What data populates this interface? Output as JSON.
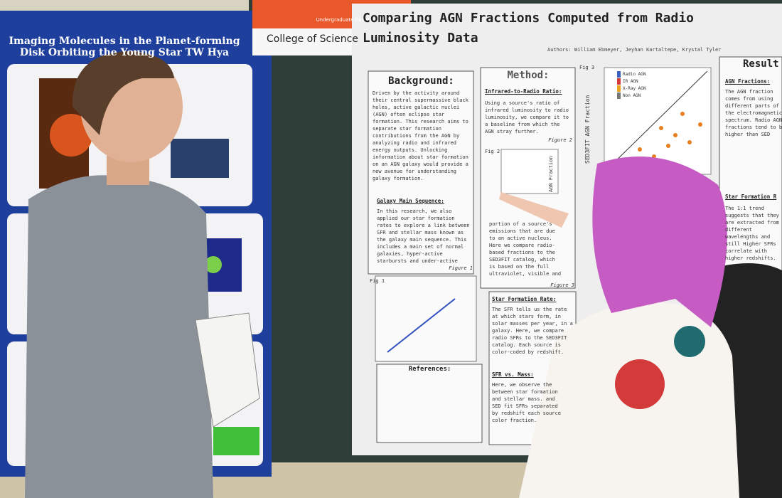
{
  "left_poster": {
    "title": "Imaging Molecules in the Planet-forming Disk Orbiting the Young Star TW Hya"
  },
  "banner": {
    "event": "Undergraduate Research Symposium",
    "college": "College of Science"
  },
  "poster": {
    "title": "Comparing AGN Fractions Computed from Radio Luminosity Data",
    "authors": "Authors: William Ebmeyer, Jeyhan Kartaltepe, Krystal Tyler",
    "background": {
      "heading": "Background:",
      "text": "Driven by the activity around their central supermassive black holes, active galactic nuclei (AGN) often eclipse star formation. This research aims to separate star formation contributions from the AGN by analyzing radio and infrared energy outputs. Unlocking information about star formation on an AGN galaxy would provide a new avenue for understanding galaxy formation."
    },
    "main_sequence": {
      "heading": "Galaxy Main Sequence:",
      "text": "In this research, we also applied our star formation rates to explore a link between SFR and stellar mass known as the galaxy main sequence. This includes a main set of normal galaxies, hyper-active starbursts and under-active 'dead' galaxies.",
      "figure": "Figure 1"
    },
    "fig1": "Fig 1",
    "references": {
      "heading": "References:"
    },
    "method": {
      "heading": "Method:",
      "subheading": "Infrared-to-Radio Ratio:",
      "text": "Using a source's ratio of infrared luminosity to radio luminosity, we compare it to a baseline from which the AGN stray further.",
      "figure": "Figure 2",
      "fig": "Fig 2",
      "axis": "AGN Fraction"
    },
    "agn_fraction": {
      "text": "portion of a source's emissions that are due to an active nucleus. Here we compare radio-based fractions to the SED3FIT catalog, which is based on the full ultraviolet, visible and infrared spectrum.",
      "figure": "Figure 3"
    },
    "sfr": {
      "heading": "Star Formation Rate:",
      "text": "The SFR tells us the rate at which stars form, in solar masses per year, in a galaxy. Here, we compare radio SFRs to the SED3FIT catalog. Each source is color-coded by redshift."
    },
    "sfr_mass": {
      "heading": "SFR vs. Mass:",
      "text": "Here, we observe the between star formation and stellar mass. and SED fit SFRs separated by redshift each source color fraction."
    },
    "fig3": {
      "label": "Fig 3",
      "axis": "SED3FIT AGN Fraction",
      "legend": [
        "Radio AGN",
        "IR AGN",
        "X-Ray AGN",
        "Non AGN"
      ]
    },
    "results": {
      "heading": "Result",
      "sub1": "AGN Fractions:",
      "text1": "The AGN fraction comes from using different parts of the electromagnetic spectrum. Radio AGN fractions tend to be higher than SED",
      "sub2": "Star Formation R",
      "text2": "The 1:1 trend suggests that they are extracted from different wavelengths and still Higher SFRs correlate with higher redshifts. Bright sources detect further."
    }
  }
}
